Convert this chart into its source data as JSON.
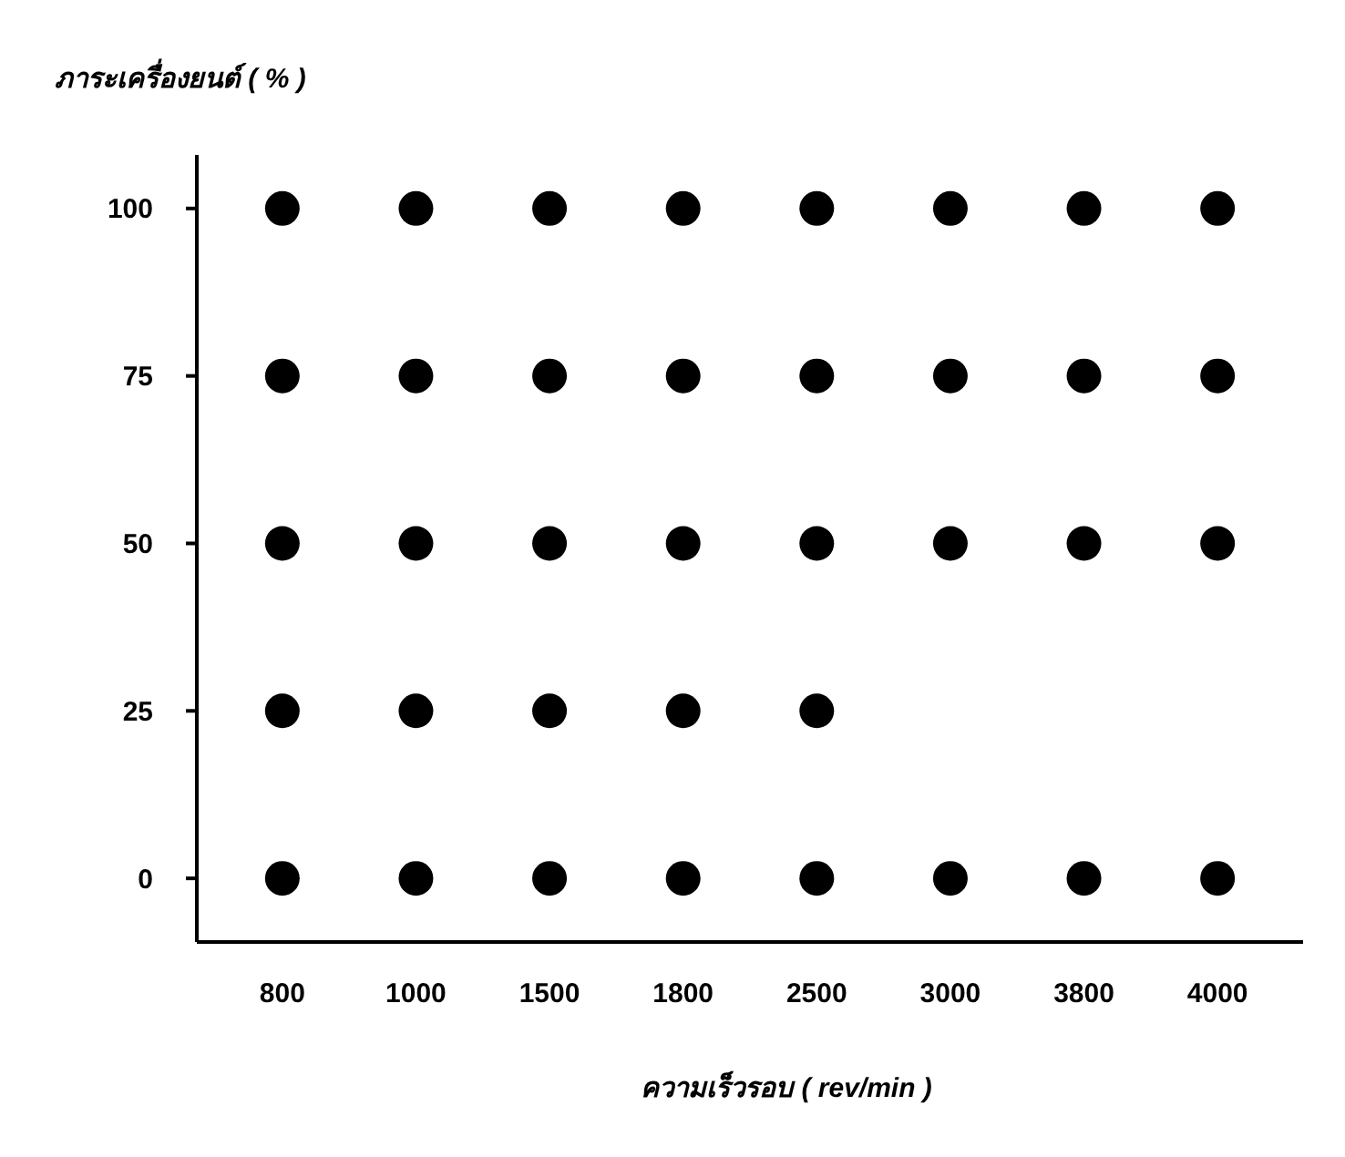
{
  "chart_data": {
    "type": "scatter",
    "xlabel": "ความเร็วรอบ ( rev/min )",
    "ylabel": "ภาระเครื่องยนต์ ( % )",
    "categories": [
      "800",
      "1000",
      "1500",
      "1800",
      "2500",
      "3000",
      "3800",
      "4000"
    ],
    "ylim": [
      -9.5,
      108
    ],
    "yticks": [
      0,
      25,
      50,
      75,
      100
    ],
    "grid": false,
    "marker": "circle",
    "series": [
      {
        "color": "#000000",
        "values": [
          100,
          100,
          100,
          100,
          100,
          100,
          100,
          100
        ]
      },
      {
        "color": "#000000",
        "values": [
          75,
          75,
          75,
          75,
          75,
          75,
          75,
          75
        ]
      },
      {
        "color": "#000000",
        "values": [
          50,
          50,
          50,
          50,
          50,
          50,
          50,
          50
        ]
      },
      {
        "color": "#000000",
        "values": [
          25,
          25,
          25,
          25,
          25,
          null,
          null,
          null
        ]
      },
      {
        "color": "#000000",
        "values": [
          0,
          0,
          0,
          0,
          0,
          0,
          0,
          0
        ]
      }
    ]
  }
}
